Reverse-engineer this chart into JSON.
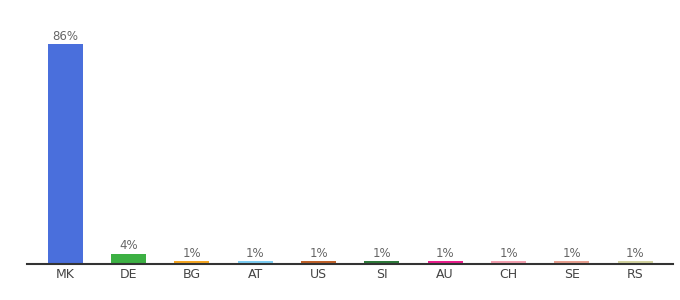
{
  "categories": [
    "MK",
    "DE",
    "BG",
    "AT",
    "US",
    "SI",
    "AU",
    "CH",
    "SE",
    "RS"
  ],
  "values": [
    86,
    4,
    1,
    1,
    1,
    1,
    1,
    1,
    1,
    1
  ],
  "labels": [
    "86%",
    "4%",
    "1%",
    "1%",
    "1%",
    "1%",
    "1%",
    "1%",
    "1%",
    "1%"
  ],
  "bar_colors": [
    "#4a6fdc",
    "#3cb043",
    "#f5a623",
    "#7ecef4",
    "#c0622a",
    "#2d7a3a",
    "#e91e8c",
    "#f4a0b0",
    "#e8a090",
    "#d4d4a0"
  ],
  "label_fontsize": 8.5,
  "tick_fontsize": 9,
  "background_color": "#ffffff",
  "ylim": [
    0,
    95
  ],
  "bar_width": 0.55
}
